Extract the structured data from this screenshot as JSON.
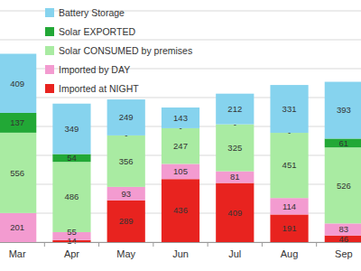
{
  "chart_data": {
    "type": "bar",
    "stacked": true,
    "data_labels": true,
    "legend": "top-left",
    "grid": true,
    "tick_labels": "x",
    "categories": [
      "Mar",
      "Apr",
      "May",
      "Jun",
      "Jul",
      "Aug",
      "Sep"
    ],
    "ylim": [
      0,
      1600
    ],
    "yticks": [
      0,
      200,
      400,
      600,
      800,
      1000,
      1200,
      1400,
      1600
    ],
    "series": [
      {
        "name": "Imported at NIGHT",
        "color": "#e8231f",
        "values": [
          null,
          14,
          289,
          436,
          409,
          191,
          46
        ]
      },
      {
        "name": "Imported by DAY",
        "color": "#f39bd0",
        "values": [
          201,
          55,
          93,
          105,
          81,
          114,
          83
        ]
      },
      {
        "name": "Solar CONSUMED by premises",
        "color": "#a9eba2",
        "values": [
          556,
          486,
          356,
          247,
          325,
          451,
          526
        ]
      },
      {
        "name": "Solar EXPORTED",
        "color": "#22a836",
        "values": [
          137,
          54,
          0,
          0,
          0,
          0,
          61
        ],
        "value_labels": [
          "137",
          "54",
          "-",
          "-",
          "-",
          "-",
          "61"
        ]
      },
      {
        "name": "Battery Storage",
        "color": "#86d3ee",
        "values": [
          409,
          349,
          249,
          143,
          212,
          331,
          393
        ]
      }
    ]
  }
}
